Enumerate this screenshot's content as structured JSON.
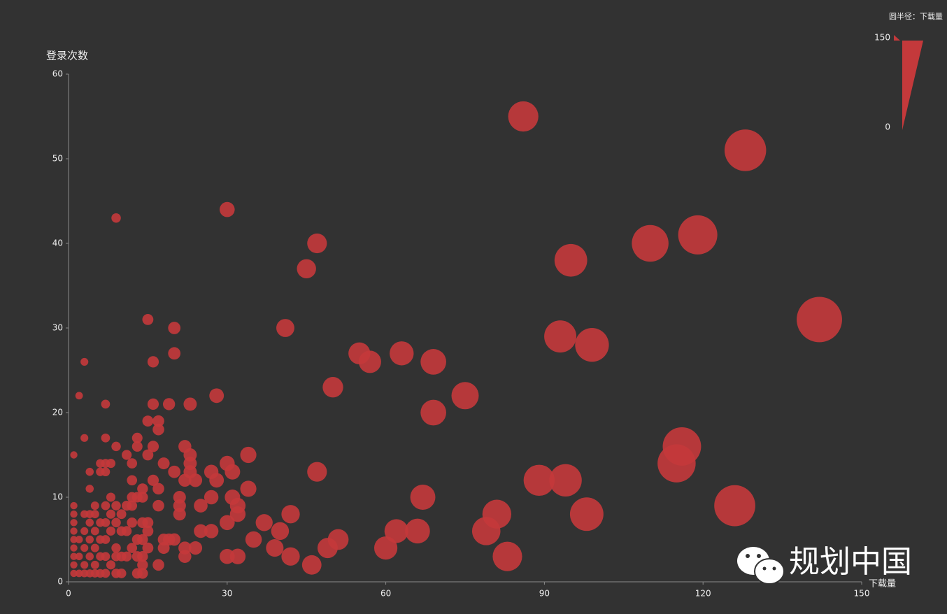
{
  "chart_data": {
    "type": "scatter",
    "y_label": "登录次数",
    "x_label": "下载量",
    "size_legend_title": "圆半径：下载量",
    "watermark": "规划中国",
    "xlim": [
      0,
      150
    ],
    "xticks": [
      0,
      30,
      60,
      90,
      120,
      150
    ],
    "ylim": [
      0,
      60
    ],
    "yticks": [
      0,
      10,
      20,
      30,
      40,
      50,
      60
    ],
    "sizelim": [
      0,
      150
    ],
    "sizeticks": [
      0,
      150
    ],
    "series": [
      {
        "color": "#c4393b",
        "x": [
          86,
          128,
          119,
          110,
          95,
          142,
          93,
          99,
          116,
          115,
          89,
          94,
          126,
          98,
          81,
          79,
          83,
          75,
          69,
          69,
          63,
          55,
          57,
          67,
          66,
          62,
          60,
          50,
          47,
          45,
          41,
          47,
          30,
          9,
          20,
          20,
          15,
          3,
          2,
          7,
          16,
          19,
          23,
          28,
          16,
          42,
          40,
          39,
          42,
          46,
          49,
          51,
          37,
          35,
          34,
          34,
          31,
          31,
          32,
          32,
          30,
          30,
          30,
          32,
          28,
          27,
          27,
          27,
          25,
          25,
          24,
          24,
          23,
          23,
          23,
          22,
          22,
          22,
          22,
          21,
          21,
          21,
          20,
          20,
          19,
          18,
          18,
          18,
          17,
          17,
          17,
          17,
          17,
          16,
          16,
          15,
          15,
          15,
          15,
          15,
          14,
          14,
          14,
          14,
          14,
          14,
          14,
          13,
          13,
          13,
          13,
          13,
          13,
          12,
          12,
          12,
          12,
          12,
          12,
          11,
          11,
          11,
          11,
          10,
          10,
          10,
          10,
          9,
          9,
          9,
          9,
          9,
          9,
          8,
          8,
          8,
          8,
          8,
          7,
          7,
          7,
          7,
          7,
          7,
          7,
          7,
          6,
          6,
          6,
          6,
          6,
          6,
          5,
          5,
          5,
          5,
          5,
          5,
          4,
          4,
          4,
          4,
          4,
          4,
          4,
          3,
          3,
          3,
          3,
          3,
          3,
          2,
          2,
          2,
          1,
          1,
          1,
          1,
          1,
          1,
          1,
          1,
          1,
          1
        ],
        "values": [
          55,
          51,
          41,
          40,
          38,
          31,
          29,
          28,
          16,
          14,
          12,
          12,
          9,
          8,
          8,
          6,
          3,
          22,
          26,
          20,
          27,
          27,
          26,
          10,
          6,
          6,
          4,
          23,
          40,
          37,
          30,
          13,
          44,
          43,
          30,
          27,
          31,
          26,
          22,
          21,
          21,
          21,
          21,
          22,
          26,
          8,
          6,
          4,
          3,
          2,
          4,
          5,
          7,
          5,
          15,
          11,
          13,
          10,
          9,
          8,
          14,
          7,
          3,
          3,
          12,
          13,
          10,
          6,
          9,
          6,
          4,
          12,
          15,
          14,
          13,
          16,
          12,
          4,
          3,
          10,
          9,
          8,
          13,
          5,
          5,
          14,
          5,
          4,
          19,
          18,
          11,
          9,
          2,
          16,
          12,
          19,
          15,
          7,
          6,
          4,
          11,
          10,
          7,
          5,
          3,
          2,
          1,
          17,
          16,
          10,
          5,
          3,
          1,
          14,
          12,
          10,
          9,
          7,
          4,
          15,
          9,
          6,
          3,
          8,
          6,
          3,
          1,
          16,
          9,
          7,
          4,
          3,
          1,
          14,
          10,
          8,
          6,
          2,
          17,
          14,
          13,
          9,
          7,
          5,
          3,
          1,
          14,
          13,
          7,
          5,
          3,
          1,
          9,
          8,
          6,
          4,
          2,
          1,
          13,
          11,
          8,
          7,
          5,
          3,
          1,
          17,
          8,
          6,
          4,
          2,
          1,
          5,
          3,
          1,
          15,
          9,
          8,
          7,
          6,
          5,
          4,
          3,
          2,
          1
        ],
        "sizes": [
          86,
          128,
          119,
          110,
          95,
          142,
          93,
          99,
          116,
          115,
          89,
          94,
          126,
          98,
          81,
          79,
          83,
          75,
          69,
          69,
          63,
          55,
          57,
          67,
          66,
          62,
          60,
          50,
          47,
          45,
          41,
          47,
          30,
          9,
          20,
          20,
          15,
          3,
          2,
          7,
          16,
          19,
          23,
          28,
          16,
          42,
          40,
          39,
          42,
          46,
          49,
          51,
          37,
          35,
          34,
          34,
          31,
          31,
          32,
          32,
          30,
          30,
          30,
          32,
          28,
          27,
          27,
          27,
          25,
          25,
          24,
          24,
          23,
          23,
          23,
          22,
          22,
          22,
          22,
          21,
          21,
          21,
          20,
          20,
          19,
          18,
          18,
          18,
          17,
          17,
          17,
          17,
          17,
          16,
          16,
          15,
          15,
          15,
          15,
          15,
          14,
          14,
          14,
          14,
          14,
          14,
          14,
          13,
          13,
          13,
          13,
          13,
          13,
          12,
          12,
          12,
          12,
          12,
          12,
          11,
          11,
          11,
          11,
          10,
          10,
          10,
          10,
          9,
          9,
          9,
          9,
          9,
          9,
          8,
          8,
          8,
          8,
          8,
          7,
          7,
          7,
          7,
          7,
          7,
          7,
          7,
          6,
          6,
          6,
          6,
          6,
          6,
          5,
          5,
          5,
          5,
          5,
          5,
          4,
          4,
          4,
          4,
          4,
          4,
          4,
          3,
          3,
          3,
          3,
          3,
          3,
          2,
          2,
          2,
          1,
          1,
          1,
          1,
          1,
          1,
          1,
          1,
          1,
          1
        ]
      }
    ]
  }
}
